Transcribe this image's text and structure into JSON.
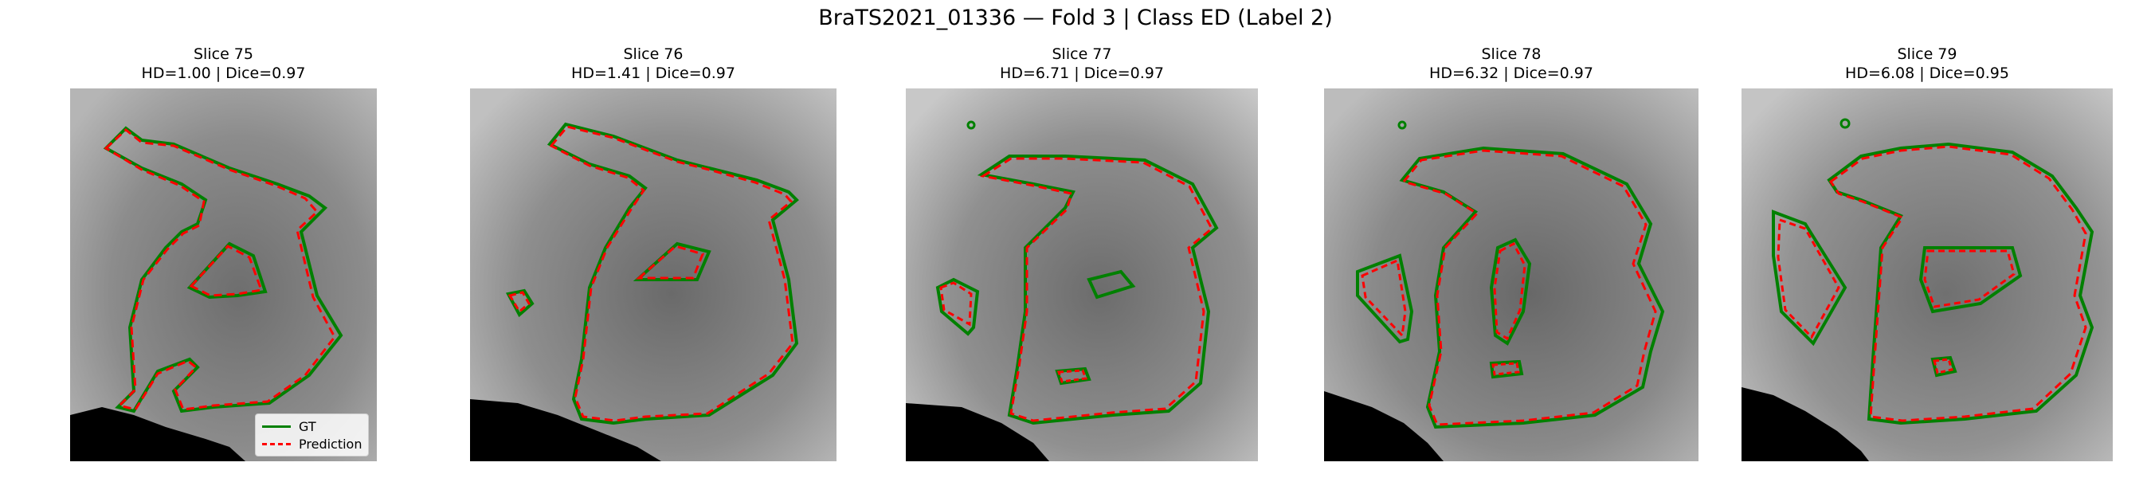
{
  "figure": {
    "title": "BraTS2021_01336 — Fold 3 | Class ED (Label 2)"
  },
  "colors": {
    "gt": "#008000",
    "prediction": "#ff0000",
    "background": "#000000"
  },
  "legend": {
    "gt_label": "GT",
    "prediction_label": "Prediction"
  },
  "panels": [
    {
      "title": "Slice 75",
      "metrics": "HD=1.00 | Dice=0.97"
    },
    {
      "title": "Slice 76",
      "metrics": "HD=1.41 | Dice=0.97"
    },
    {
      "title": "Slice 77",
      "metrics": "HD=6.71 | Dice=0.97"
    },
    {
      "title": "Slice 78",
      "metrics": "HD=6.32 | Dice=0.97"
    },
    {
      "title": "Slice 79",
      "metrics": "HD=6.08 | Dice=0.95"
    }
  ]
}
